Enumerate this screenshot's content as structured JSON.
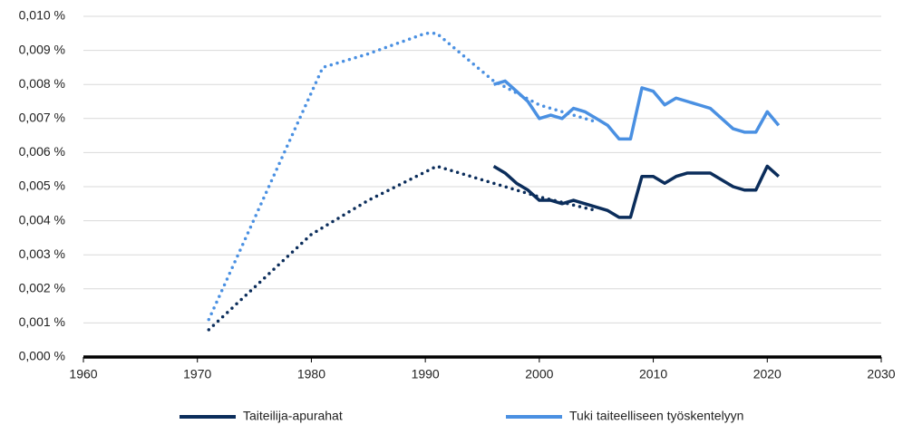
{
  "chart_data": {
    "type": "line",
    "xlim": [
      1960,
      2030
    ],
    "xticks": [
      1960,
      1970,
      1980,
      1990,
      2000,
      2010,
      2020,
      2030
    ],
    "ylim": [
      0,
      0.01
    ],
    "yticks": [
      {
        "value": 0,
        "label": "0,000 %"
      },
      {
        "value": 0.001,
        "label": "0,001 %"
      },
      {
        "value": 0.002,
        "label": "0,002 %"
      },
      {
        "value": 0.003,
        "label": "0,003 %"
      },
      {
        "value": 0.004,
        "label": "0,004 %"
      },
      {
        "value": 0.005,
        "label": "0,005 %"
      },
      {
        "value": 0.006,
        "label": "0,006 %"
      },
      {
        "value": 0.007,
        "label": "0,007 %"
      },
      {
        "value": 0.008,
        "label": "0,008 %"
      },
      {
        "value": 0.009,
        "label": "0,009 %"
      },
      {
        "value": 0.01,
        "label": "0,010 %"
      }
    ],
    "grid": true,
    "legend": "bottom",
    "series": [
      {
        "name": "Taiteilija-apurahat",
        "color": "#0b2d5b",
        "style": "solid",
        "x": [
          1996,
          1997,
          1998,
          1999,
          2000,
          2001,
          2002,
          2003,
          2004,
          2005,
          2006,
          2007,
          2008,
          2009,
          2010,
          2011,
          2012,
          2013,
          2014,
          2015,
          2016,
          2017,
          2018,
          2019,
          2020,
          2021
        ],
        "values": [
          0.0056,
          0.0054,
          0.0051,
          0.0049,
          0.0046,
          0.0046,
          0.0045,
          0.0046,
          0.0045,
          0.0044,
          0.0043,
          0.0041,
          0.0041,
          0.0053,
          0.0053,
          0.0051,
          0.0053,
          0.0054,
          0.0054,
          0.0054,
          0.0052,
          0.005,
          0.0049,
          0.0049,
          0.0056,
          0.0053
        ]
      },
      {
        "name": "Tuki taiteelliseen työskentelyyn",
        "color": "#4a90e2",
        "style": "solid",
        "x": [
          1996,
          1997,
          1998,
          1999,
          2000,
          2001,
          2002,
          2003,
          2004,
          2005,
          2006,
          2007,
          2008,
          2009,
          2010,
          2011,
          2012,
          2013,
          2014,
          2015,
          2016,
          2017,
          2018,
          2019,
          2020,
          2021
        ],
        "values": [
          0.008,
          0.0081,
          0.0078,
          0.0075,
          0.007,
          0.0071,
          0.007,
          0.0073,
          0.0072,
          0.007,
          0.0068,
          0.0064,
          0.0064,
          0.0079,
          0.0078,
          0.0074,
          0.0076,
          0.0075,
          0.0074,
          0.0073,
          0.007,
          0.0067,
          0.0066,
          0.0066,
          0.0072,
          0.0068
        ]
      },
      {
        "color": "#0b2d5b",
        "style": "dotted",
        "x": [
          1971,
          1980,
          1985,
          1991,
          1996,
          2000,
          2005
        ],
        "values": [
          0.0008,
          0.0036,
          0.0046,
          0.0056,
          0.0051,
          0.0047,
          0.0043
        ]
      },
      {
        "color": "#4a90e2",
        "style": "dotted",
        "x": [
          1971,
          1981,
          1985,
          1990,
          1991,
          1996,
          2000,
          2005
        ],
        "values": [
          0.0011,
          0.0085,
          0.0089,
          0.0095,
          0.0095,
          0.0081,
          0.0074,
          0.0069
        ]
      }
    ]
  }
}
